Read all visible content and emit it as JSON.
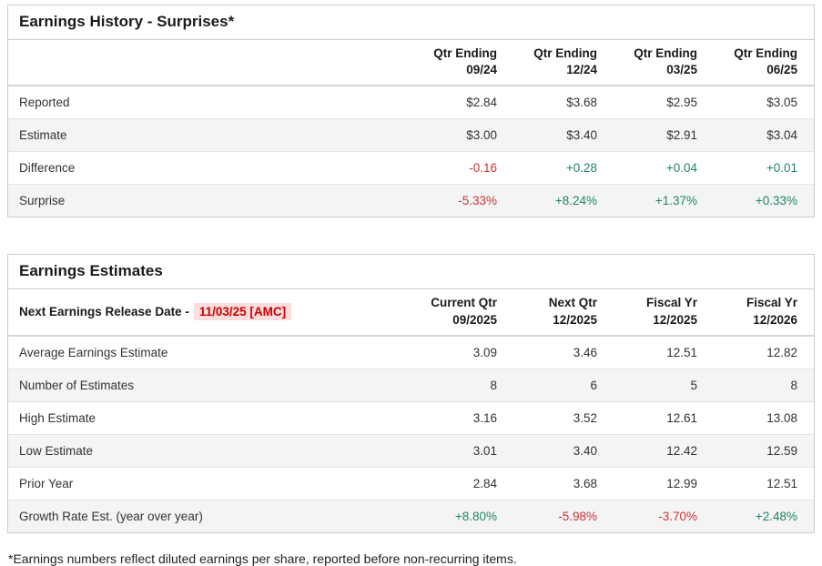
{
  "colors": {
    "positive": "#1e8568",
    "negative": "#cc3333",
    "release_date_text": "#cc0000",
    "release_date_bg": "#fcdcdc",
    "stripe_row_bg": "#f4f4f4"
  },
  "history": {
    "title": "Earnings History - Surprises*",
    "columns": [
      "Qtr Ending\n09/24",
      "Qtr Ending\n12/24",
      "Qtr Ending\n03/25",
      "Qtr Ending\n06/25"
    ],
    "rows": [
      {
        "label": "Reported",
        "values": [
          "$2.84",
          "$3.68",
          "$2.95",
          "$3.05"
        ],
        "tones": [
          "",
          "",
          "",
          ""
        ]
      },
      {
        "label": "Estimate",
        "values": [
          "$3.00",
          "$3.40",
          "$2.91",
          "$3.04"
        ],
        "tones": [
          "",
          "",
          "",
          ""
        ]
      },
      {
        "label": "Difference",
        "values": [
          "-0.16",
          "+0.28",
          "+0.04",
          "+0.01"
        ],
        "tones": [
          "neg",
          "pos",
          "pos",
          "pos"
        ]
      },
      {
        "label": "Surprise",
        "values": [
          "-5.33%",
          "+8.24%",
          "+1.37%",
          "+0.33%"
        ],
        "tones": [
          "neg",
          "pos",
          "pos",
          "pos"
        ]
      }
    ]
  },
  "estimates": {
    "title": "Earnings Estimates",
    "release_label": "Next Earnings Release Date -",
    "release_date": "11/03/25 [AMC]",
    "columns": [
      "Current Qtr\n09/2025",
      "Next Qtr\n12/2025",
      "Fiscal Yr\n12/2025",
      "Fiscal Yr\n12/2026"
    ],
    "rows": [
      {
        "label": "Average Earnings Estimate",
        "values": [
          "3.09",
          "3.46",
          "12.51",
          "12.82"
        ],
        "tones": [
          "",
          "",
          "",
          ""
        ]
      },
      {
        "label": "Number of Estimates",
        "values": [
          "8",
          "6",
          "5",
          "8"
        ],
        "tones": [
          "",
          "",
          "",
          ""
        ]
      },
      {
        "label": "High Estimate",
        "values": [
          "3.16",
          "3.52",
          "12.61",
          "13.08"
        ],
        "tones": [
          "",
          "",
          "",
          ""
        ]
      },
      {
        "label": "Low Estimate",
        "values": [
          "3.01",
          "3.40",
          "12.42",
          "12.59"
        ],
        "tones": [
          "",
          "",
          "",
          ""
        ]
      },
      {
        "label": "Prior Year",
        "values": [
          "2.84",
          "3.68",
          "12.99",
          "12.51"
        ],
        "tones": [
          "",
          "",
          "",
          ""
        ]
      },
      {
        "label": "Growth Rate Est. (year over year)",
        "values": [
          "+8.80%",
          "-5.98%",
          "-3.70%",
          "+2.48%"
        ],
        "tones": [
          "pos",
          "neg",
          "neg",
          "pos"
        ]
      }
    ]
  },
  "footnote": "*Earnings numbers reflect diluted earnings per share, reported before non-recurring items."
}
